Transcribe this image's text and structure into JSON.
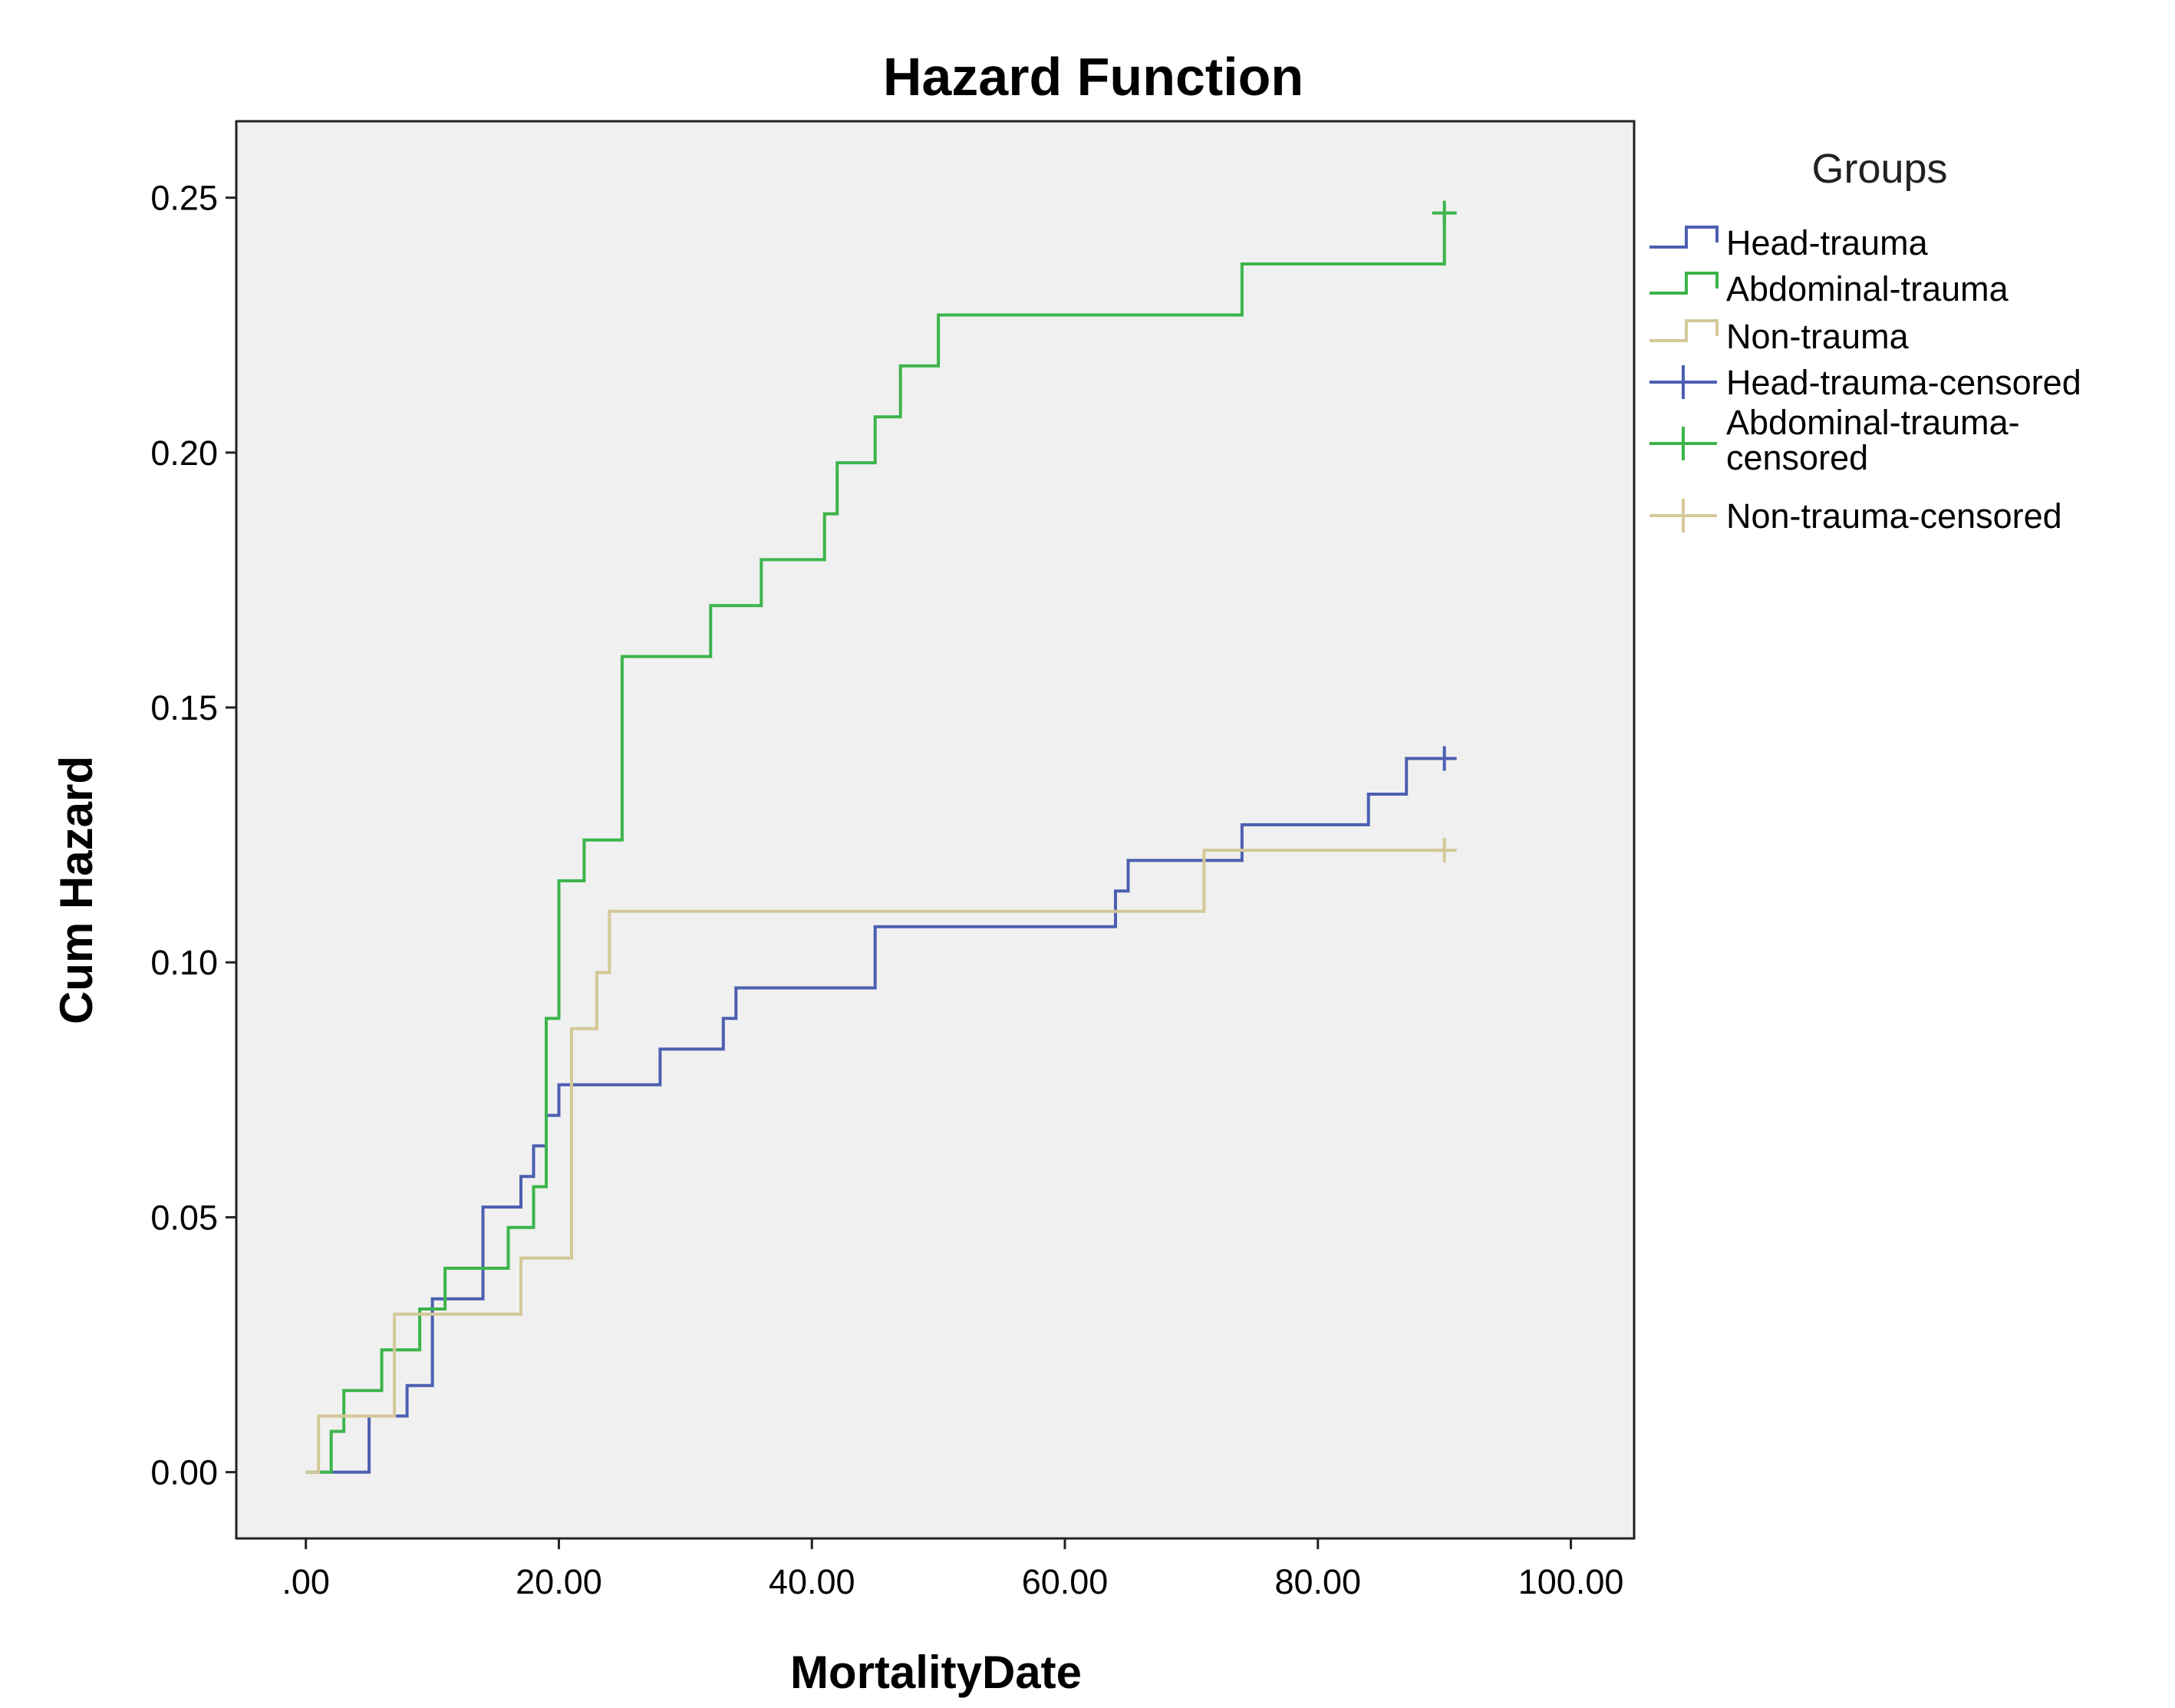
{
  "chart_data": {
    "type": "line",
    "step": true,
    "title": "Hazard Function",
    "xlabel": "MortalityDate",
    "ylabel": "Cum Hazard",
    "xlim": [
      -5.5,
      105
    ],
    "ylim": [
      -0.013,
      0.265
    ],
    "xticks": [
      0,
      20,
      40,
      60,
      80,
      100
    ],
    "xtick_labels": [
      ".00",
      "20.00",
      "40.00",
      "60.00",
      "80.00",
      "100.00"
    ],
    "yticks": [
      0,
      0.05,
      0.1,
      0.15,
      0.2,
      0.25
    ],
    "ytick_labels": [
      "0.00",
      "0.05",
      "0.10",
      "0.15",
      "0.20",
      "0.25"
    ],
    "grid": false,
    "plot_background": "#f0f0f0",
    "legend": {
      "title": "Groups",
      "position": "right",
      "entries": [
        {
          "label": "Head-trauma",
          "series": "Head-trauma",
          "kind": "line"
        },
        {
          "label": "Abdominal-trauma",
          "series": "Abdominal-trauma",
          "kind": "line"
        },
        {
          "label": "Non-trauma",
          "series": "Non-trauma",
          "kind": "line"
        },
        {
          "label": "Head-trauma-censored",
          "series": "Head-trauma",
          "kind": "censor"
        },
        {
          "label": "Abdominal-trauma-censored",
          "label_lines": [
            "Abdominal-trauma-",
            "censored"
          ],
          "series": "Abdominal-trauma",
          "kind": "censor"
        },
        {
          "label": "Non-trauma-censored",
          "series": "Non-trauma",
          "kind": "censor"
        }
      ]
    },
    "series": [
      {
        "name": "Head-trauma",
        "color": "#4c5fb1",
        "points": [
          [
            0,
            0
          ],
          [
            5,
            0
          ],
          [
            5,
            0.011
          ],
          [
            8,
            0.011
          ],
          [
            8,
            0.017
          ],
          [
            10,
            0.017
          ],
          [
            10,
            0.034
          ],
          [
            14,
            0.034
          ],
          [
            14,
            0.052
          ],
          [
            17,
            0.052
          ],
          [
            17,
            0.058
          ],
          [
            18,
            0.058
          ],
          [
            18,
            0.064
          ],
          [
            19,
            0.064
          ],
          [
            19,
            0.07
          ],
          [
            20,
            0.07
          ],
          [
            20,
            0.076
          ],
          [
            28,
            0.076
          ],
          [
            28,
            0.083
          ],
          [
            33,
            0.083
          ],
          [
            33,
            0.089
          ],
          [
            34,
            0.089
          ],
          [
            34,
            0.095
          ],
          [
            45,
            0.095
          ],
          [
            45,
            0.107
          ],
          [
            64,
            0.107
          ],
          [
            64,
            0.114
          ],
          [
            65,
            0.114
          ],
          [
            65,
            0.12
          ],
          [
            74,
            0.12
          ],
          [
            74,
            0.127
          ],
          [
            84,
            0.127
          ],
          [
            84,
            0.133
          ],
          [
            87,
            0.133
          ],
          [
            87,
            0.14
          ],
          [
            90,
            0.14
          ]
        ],
        "censored": [
          [
            90,
            0.14
          ]
        ]
      },
      {
        "name": "Abdominal-trauma",
        "color": "#3cb44b",
        "points": [
          [
            0,
            0
          ],
          [
            2,
            0
          ],
          [
            2,
            0.008
          ],
          [
            3,
            0.008
          ],
          [
            3,
            0.016
          ],
          [
            6,
            0.016
          ],
          [
            6,
            0.024
          ],
          [
            9,
            0.024
          ],
          [
            9,
            0.032
          ],
          [
            11,
            0.032
          ],
          [
            11,
            0.04
          ],
          [
            16,
            0.04
          ],
          [
            16,
            0.048
          ],
          [
            18,
            0.048
          ],
          [
            18,
            0.056
          ],
          [
            19,
            0.056
          ],
          [
            19,
            0.089
          ],
          [
            20,
            0.089
          ],
          [
            20,
            0.116
          ],
          [
            22,
            0.116
          ],
          [
            22,
            0.124
          ],
          [
            25,
            0.124
          ],
          [
            25,
            0.16
          ],
          [
            32,
            0.16
          ],
          [
            32,
            0.17
          ],
          [
            36,
            0.17
          ],
          [
            36,
            0.179
          ],
          [
            41,
            0.179
          ],
          [
            41,
            0.188
          ],
          [
            42,
            0.188
          ],
          [
            42,
            0.198
          ],
          [
            45,
            0.198
          ],
          [
            45,
            0.207
          ],
          [
            47,
            0.207
          ],
          [
            47,
            0.217
          ],
          [
            50,
            0.217
          ],
          [
            50,
            0.227
          ],
          [
            74,
            0.227
          ],
          [
            74,
            0.237
          ],
          [
            90,
            0.237
          ],
          [
            90,
            0.247
          ]
        ],
        "censored": [
          [
            90,
            0.247
          ]
        ]
      },
      {
        "name": "Non-trauma",
        "color": "#d4c898",
        "points": [
          [
            0,
            0
          ],
          [
            1,
            0
          ],
          [
            1,
            0.011
          ],
          [
            7,
            0.011
          ],
          [
            7,
            0.031
          ],
          [
            17,
            0.031
          ],
          [
            17,
            0.042
          ],
          [
            21,
            0.042
          ],
          [
            21,
            0.087
          ],
          [
            23,
            0.087
          ],
          [
            23,
            0.098
          ],
          [
            24,
            0.098
          ],
          [
            24,
            0.11
          ],
          [
            71,
            0.11
          ],
          [
            71,
            0.122
          ],
          [
            90,
            0.122
          ]
        ],
        "censored": [
          [
            90,
            0.122
          ]
        ]
      }
    ]
  }
}
